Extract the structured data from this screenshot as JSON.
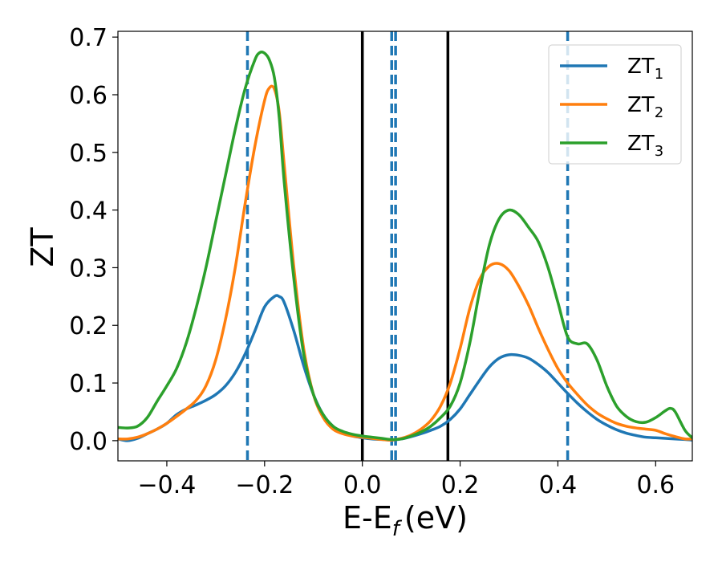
{
  "chart_data": {
    "type": "line",
    "xlabel": "E-E",
    "xlabel_subscript": "f",
    "xlabel_unit": "(eV)",
    "ylabel": "ZT",
    "xlim": [
      -0.5,
      0.675
    ],
    "ylim": [
      -0.035,
      0.71
    ],
    "xticks": [
      -0.4,
      -0.2,
      0.0,
      0.2,
      0.4,
      0.6
    ],
    "xtick_labels": [
      "−0.4",
      "−0.2",
      "0.0",
      "0.2",
      "0.4",
      "0.6"
    ],
    "yticks": [
      0.0,
      0.1,
      0.2,
      0.3,
      0.4,
      0.5,
      0.6,
      0.7
    ],
    "ytick_labels": [
      "0.0",
      "0.1",
      "0.2",
      "0.3",
      "0.4",
      "0.5",
      "0.6",
      "0.7"
    ],
    "grid": false,
    "legend_position": "top-right",
    "series": [
      {
        "name": "ZT",
        "subscript": "1",
        "color": "#1f77b4",
        "x": [
          -0.5,
          -0.48,
          -0.46,
          -0.44,
          -0.42,
          -0.4,
          -0.38,
          -0.36,
          -0.34,
          -0.32,
          -0.3,
          -0.28,
          -0.26,
          -0.24,
          -0.22,
          -0.2,
          -0.18,
          -0.17,
          -0.16,
          -0.14,
          -0.12,
          -0.1,
          -0.08,
          -0.06,
          -0.04,
          -0.02,
          0.0,
          0.02,
          0.04,
          0.06,
          0.08,
          0.1,
          0.12,
          0.14,
          0.16,
          0.18,
          0.2,
          0.22,
          0.24,
          0.26,
          0.28,
          0.3,
          0.32,
          0.34,
          0.36,
          0.38,
          0.4,
          0.42,
          0.44,
          0.46,
          0.48,
          0.5,
          0.52,
          0.54,
          0.56,
          0.58,
          0.6,
          0.62,
          0.64,
          0.66,
          0.675
        ],
        "y": [
          0.003,
          0.0,
          0.004,
          0.012,
          0.02,
          0.03,
          0.045,
          0.055,
          0.062,
          0.07,
          0.08,
          0.095,
          0.118,
          0.15,
          0.19,
          0.232,
          0.25,
          0.25,
          0.24,
          0.19,
          0.13,
          0.08,
          0.045,
          0.025,
          0.014,
          0.008,
          0.005,
          0.003,
          0.002,
          0.001,
          0.003,
          0.007,
          0.012,
          0.018,
          0.025,
          0.037,
          0.055,
          0.08,
          0.105,
          0.128,
          0.143,
          0.149,
          0.148,
          0.143,
          0.132,
          0.118,
          0.1,
          0.082,
          0.065,
          0.05,
          0.037,
          0.027,
          0.019,
          0.013,
          0.009,
          0.006,
          0.005,
          0.004,
          0.003,
          0.002,
          0.001
        ]
      },
      {
        "name": "ZT",
        "subscript": "2",
        "color": "#ff7f0e",
        "x": [
          -0.5,
          -0.48,
          -0.46,
          -0.44,
          -0.42,
          -0.4,
          -0.38,
          -0.36,
          -0.34,
          -0.32,
          -0.3,
          -0.28,
          -0.26,
          -0.24,
          -0.22,
          -0.2,
          -0.19,
          -0.18,
          -0.17,
          -0.16,
          -0.14,
          -0.12,
          -0.1,
          -0.08,
          -0.06,
          -0.04,
          -0.02,
          0.0,
          0.02,
          0.04,
          0.06,
          0.08,
          0.1,
          0.12,
          0.14,
          0.16,
          0.18,
          0.2,
          0.22,
          0.24,
          0.26,
          0.28,
          0.3,
          0.32,
          0.34,
          0.36,
          0.38,
          0.4,
          0.42,
          0.44,
          0.46,
          0.48,
          0.5,
          0.52,
          0.54,
          0.56,
          0.58,
          0.6,
          0.62,
          0.64,
          0.66,
          0.675
        ],
        "y": [
          0.003,
          0.003,
          0.006,
          0.012,
          0.02,
          0.03,
          0.042,
          0.055,
          0.07,
          0.095,
          0.14,
          0.21,
          0.3,
          0.41,
          0.51,
          0.59,
          0.612,
          0.61,
          0.57,
          0.48,
          0.3,
          0.16,
          0.08,
          0.04,
          0.02,
          0.012,
          0.008,
          0.006,
          0.004,
          0.002,
          0.001,
          0.004,
          0.01,
          0.02,
          0.035,
          0.06,
          0.1,
          0.16,
          0.23,
          0.28,
          0.303,
          0.307,
          0.295,
          0.268,
          0.235,
          0.195,
          0.158,
          0.125,
          0.1,
          0.08,
          0.062,
          0.048,
          0.038,
          0.03,
          0.025,
          0.022,
          0.02,
          0.018,
          0.012,
          0.007,
          0.003,
          0.003
        ]
      },
      {
        "name": "ZT",
        "subscript": "3",
        "color": "#2ca02c",
        "x": [
          -0.5,
          -0.48,
          -0.46,
          -0.44,
          -0.42,
          -0.4,
          -0.38,
          -0.36,
          -0.34,
          -0.32,
          -0.3,
          -0.28,
          -0.26,
          -0.24,
          -0.22,
          -0.21,
          -0.2,
          -0.19,
          -0.18,
          -0.17,
          -0.16,
          -0.14,
          -0.12,
          -0.1,
          -0.08,
          -0.06,
          -0.04,
          -0.02,
          0.0,
          0.02,
          0.04,
          0.06,
          0.08,
          0.1,
          0.12,
          0.14,
          0.16,
          0.18,
          0.2,
          0.22,
          0.24,
          0.26,
          0.28,
          0.3,
          0.32,
          0.34,
          0.36,
          0.38,
          0.4,
          0.42,
          0.44,
          0.46,
          0.48,
          0.5,
          0.52,
          0.54,
          0.56,
          0.58,
          0.6,
          0.62,
          0.63,
          0.64,
          0.66,
          0.675
        ],
        "y": [
          0.023,
          0.022,
          0.025,
          0.04,
          0.068,
          0.095,
          0.125,
          0.17,
          0.23,
          0.3,
          0.38,
          0.46,
          0.54,
          0.61,
          0.66,
          0.673,
          0.672,
          0.66,
          0.63,
          0.56,
          0.45,
          0.28,
          0.15,
          0.08,
          0.045,
          0.025,
          0.016,
          0.011,
          0.008,
          0.006,
          0.004,
          0.002,
          0.003,
          0.008,
          0.015,
          0.025,
          0.04,
          0.06,
          0.1,
          0.17,
          0.26,
          0.34,
          0.385,
          0.4,
          0.392,
          0.37,
          0.345,
          0.3,
          0.24,
          0.18,
          0.168,
          0.168,
          0.14,
          0.095,
          0.06,
          0.042,
          0.033,
          0.032,
          0.04,
          0.052,
          0.056,
          0.05,
          0.018,
          0.005
        ]
      }
    ],
    "vlines": [
      {
        "x": -0.235,
        "style": "dashed",
        "color": "#1f77b4"
      },
      {
        "x": 0.0,
        "style": "solid",
        "color": "#000000"
      },
      {
        "x": 0.06,
        "style": "dashed",
        "color": "#1f77b4"
      },
      {
        "x": 0.068,
        "style": "dashed",
        "color": "#1f77b4"
      },
      {
        "x": 0.175,
        "style": "solid",
        "color": "#000000"
      },
      {
        "x": 0.42,
        "style": "dashed",
        "color": "#1f77b4"
      }
    ]
  }
}
